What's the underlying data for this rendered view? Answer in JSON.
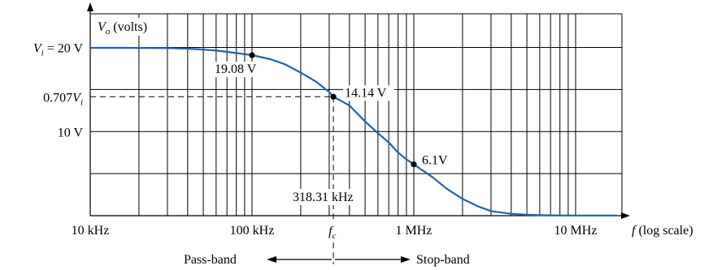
{
  "chart_data": {
    "type": "line",
    "x_scale": "log",
    "xlim": [
      10000,
      20000000
    ],
    "ylim": [
      0,
      24
    ],
    "grid": true,
    "series": [
      {
        "color": "#1f63a8",
        "x": [
          10000,
          15000,
          20000,
          30000,
          40000,
          50000,
          60000,
          70000,
          80000,
          90000,
          100000,
          130000,
          160000,
          200000,
          250000,
          300000,
          318310,
          400000,
          500000,
          600000,
          700000,
          800000,
          900000,
          1000000,
          1300000,
          1600000,
          2000000,
          2500000,
          3000000,
          4000000,
          5000000,
          6000000,
          7000000,
          8000000,
          10000000,
          14000000,
          18000000
        ],
        "y": [
          19.95,
          19.95,
          19.94,
          19.92,
          19.86,
          19.75,
          19.62,
          19.48,
          19.33,
          19.2,
          19.08,
          18.6,
          18.0,
          17.0,
          15.9,
          14.7,
          14.14,
          13.1,
          11.2,
          9.8,
          8.7,
          7.5,
          6.7,
          6.1,
          4.6,
          3.2,
          2.0,
          1.1,
          0.55,
          0.22,
          0.11,
          0.06,
          0.04,
          0.03,
          0.02,
          0.02,
          0.02
        ]
      }
    ],
    "points": [
      {
        "x": 100000,
        "y": 19.08,
        "label": "19.08 V"
      },
      {
        "x": 318310,
        "y": 14.14,
        "label": "14.14 V"
      },
      {
        "x": 1000000,
        "y": 6.1,
        "label": "6.1V"
      }
    ],
    "y_tick_labels": [
      {
        "y": 20,
        "label": "V",
        "sub": "i",
        "rest": " =  20 V"
      },
      {
        "y": 14.14,
        "label": "0.707V",
        "sub": "i",
        "rest": ""
      },
      {
        "y": 10,
        "label": "10 V",
        "sub": "",
        "rest": ""
      }
    ],
    "y_gridlines": [
      5,
      10,
      15,
      20
    ],
    "x_tick_labels": [
      {
        "x": 10000,
        "label": "10 kHz"
      },
      {
        "x": 100000,
        "label": "100 kHz"
      },
      {
        "x": 1000000,
        "label": "1 MHz"
      },
      {
        "x": 10000000,
        "label": "10 MHz"
      }
    ],
    "ylabel": {
      "main": "V",
      "sub": "o",
      "rest": " (volts)"
    },
    "xlabel": {
      "main": "f",
      "rest": " (log scale)"
    },
    "fc_label": {
      "main": "f",
      "sub": "c"
    },
    "fc_value": "318.31 kHz",
    "pass_band": "Pass-band",
    "stop_band": "Stop-band"
  }
}
